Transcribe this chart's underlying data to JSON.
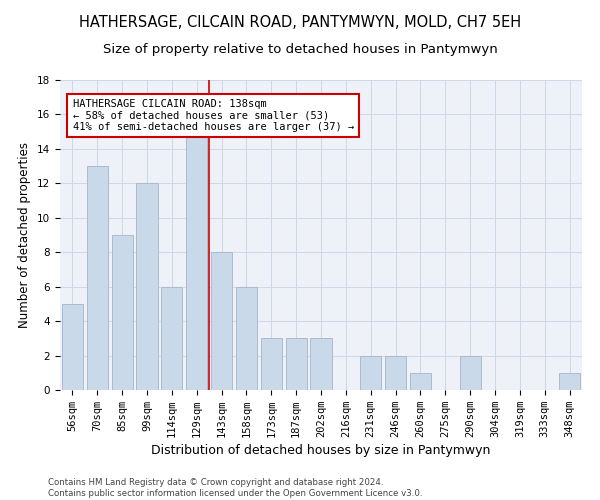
{
  "title1": "HATHERSAGE, CILCAIN ROAD, PANTYMWYN, MOLD, CH7 5EH",
  "title2": "Size of property relative to detached houses in Pantymwyn",
  "xlabel": "Distribution of detached houses by size in Pantymwyn",
  "ylabel": "Number of detached properties",
  "categories": [
    "56sqm",
    "70sqm",
    "85sqm",
    "99sqm",
    "114sqm",
    "129sqm",
    "143sqm",
    "158sqm",
    "173sqm",
    "187sqm",
    "202sqm",
    "216sqm",
    "231sqm",
    "246sqm",
    "260sqm",
    "275sqm",
    "290sqm",
    "304sqm",
    "319sqm",
    "333sqm",
    "348sqm"
  ],
  "values": [
    5,
    13,
    9,
    12,
    6,
    15,
    8,
    6,
    3,
    3,
    3,
    0,
    2,
    2,
    1,
    0,
    2,
    0,
    0,
    0,
    1
  ],
  "bar_color": "#c9d9ea",
  "bar_edge_color": "#aabcce",
  "vline_x": 5.5,
  "vline_color": "#cc0000",
  "annotation_text": "HATHERSAGE CILCAIN ROAD: 138sqm\n← 58% of detached houses are smaller (53)\n41% of semi-detached houses are larger (37) →",
  "ylim": [
    0,
    18
  ],
  "yticks": [
    0,
    2,
    4,
    6,
    8,
    10,
    12,
    14,
    16,
    18
  ],
  "grid_color": "#d0d8e8",
  "bg_color": "#eef2f8",
  "footer": "Contains HM Land Registry data © Crown copyright and database right 2024.\nContains public sector information licensed under the Open Government Licence v3.0.",
  "title1_fontsize": 10.5,
  "title2_fontsize": 9.5,
  "xlabel_fontsize": 9,
  "ylabel_fontsize": 8.5,
  "tick_fontsize": 7.5,
  "annotation_fontsize": 7.5
}
